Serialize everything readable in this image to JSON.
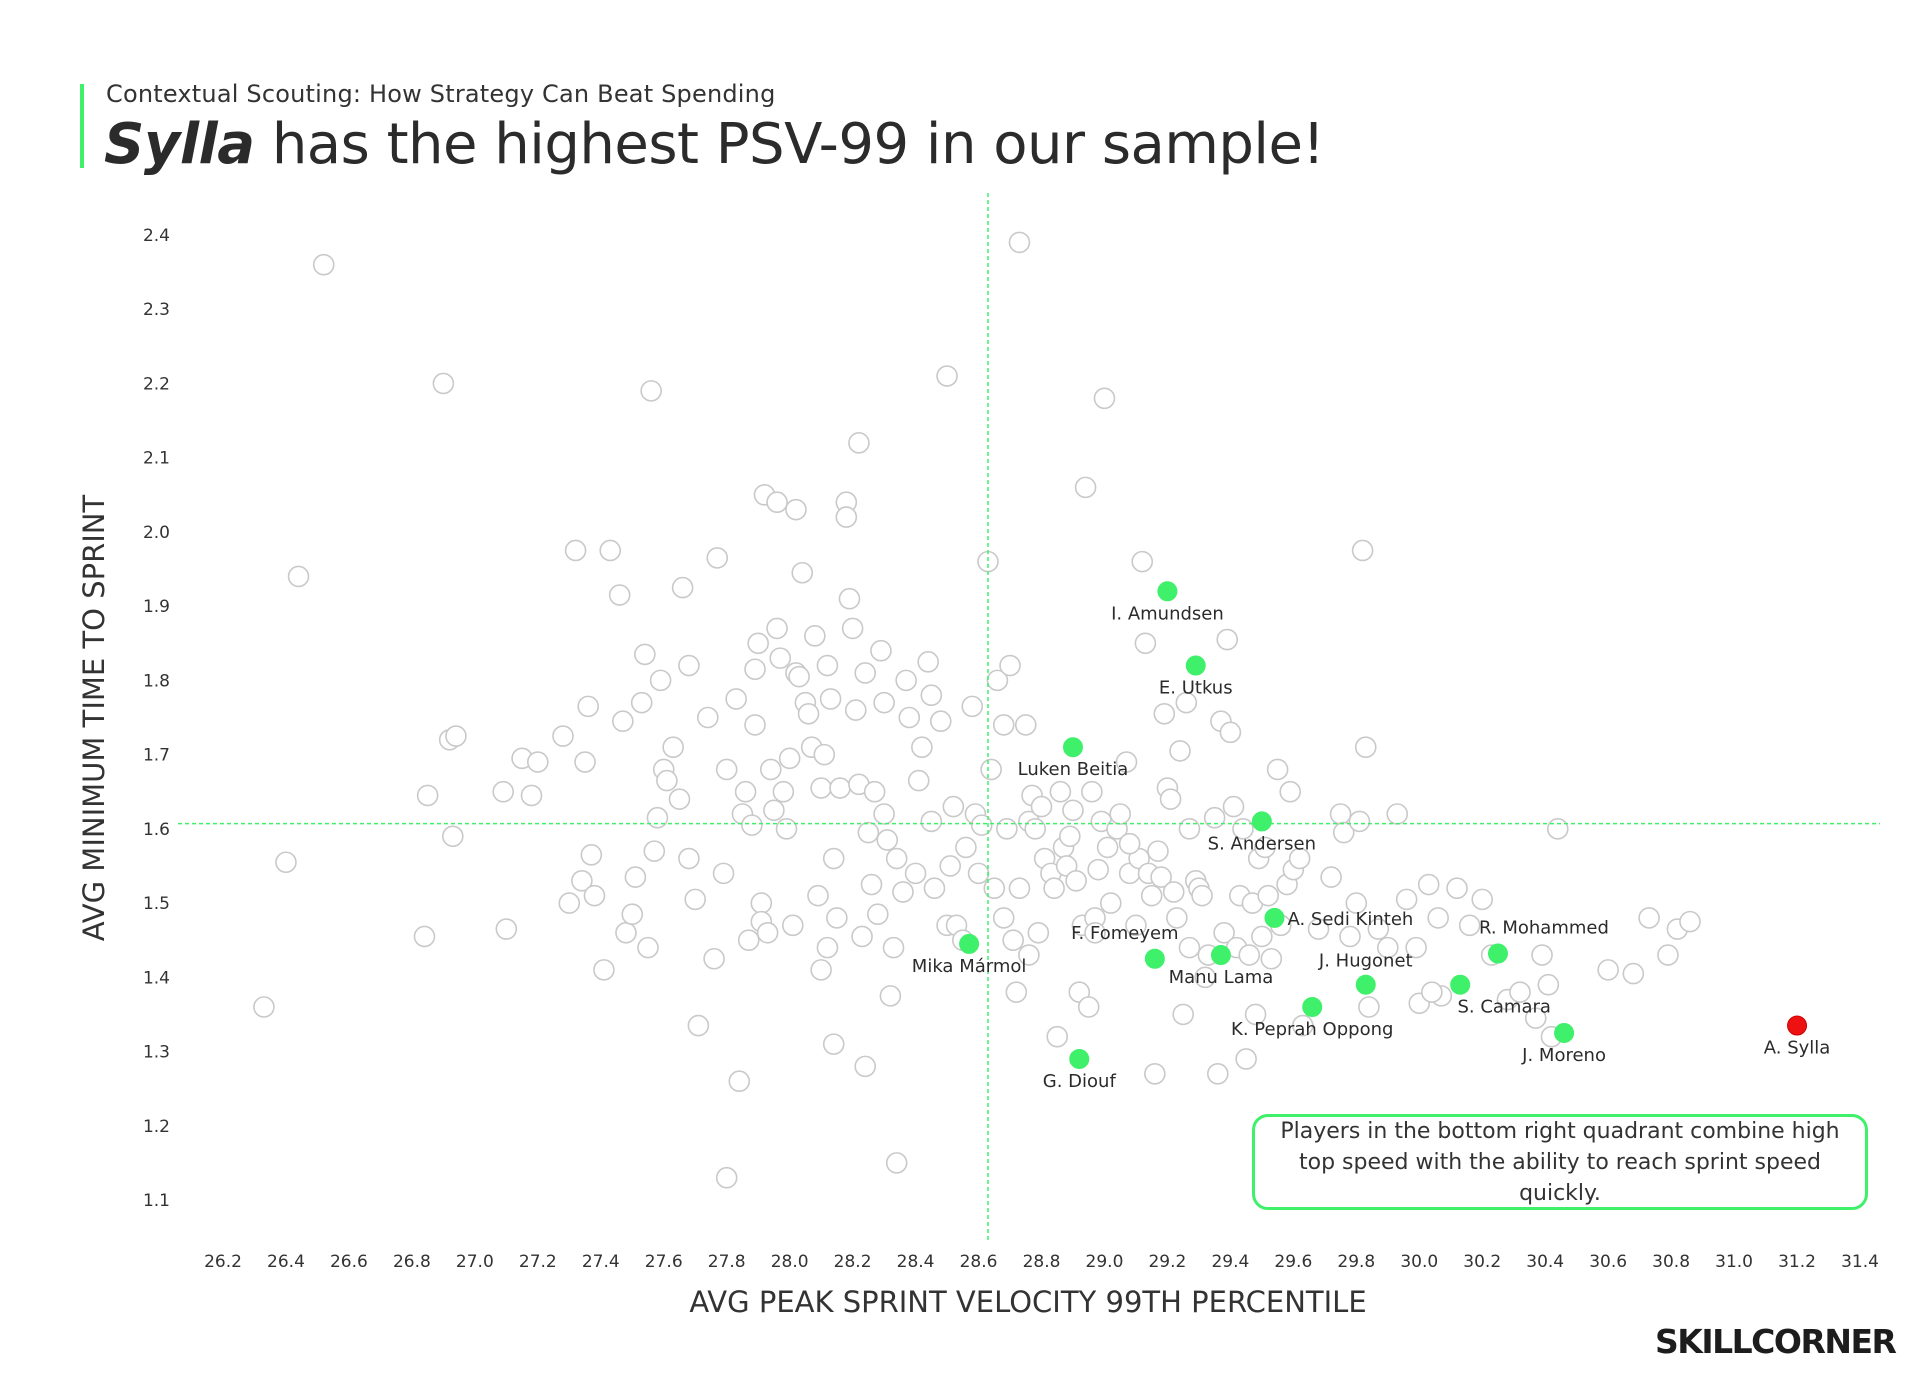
{
  "header": {
    "subtitle": "Contextual Scouting: How Strategy Can Beat Spending",
    "title_emphasis": "Sylla",
    "title_rest": " has the highest PSV-99 in our sample!"
  },
  "annotation": "Players in the bottom right quadrant combine high top speed with the ability to reach sprint speed quickly.",
  "logo": "SKILLCORNER",
  "colors": {
    "accent": "#3ff06a",
    "highlight": "#3ff06a",
    "top": "#ee1111",
    "background_point": "#ffffff",
    "background_stroke": "#c9c9c9",
    "ref_line": "#3ff06a"
  },
  "chart_data": {
    "type": "scatter",
    "xlabel": "AVG PEAK SPRINT VELOCITY 99TH PERCENTILE",
    "ylabel": "AVG MINIMUM TIME TO SPRINT",
    "xlim": [
      26.2,
      31.4
    ],
    "ylim": [
      1.1,
      2.4
    ],
    "x_ticks": [
      "26.2",
      "26.4",
      "26.6",
      "26.8",
      "27.0",
      "27.2",
      "27.4",
      "27.6",
      "27.8",
      "28.0",
      "28.2",
      "28.4",
      "28.6",
      "28.8",
      "29.0",
      "29.2",
      "29.4",
      "29.6",
      "29.8",
      "30.0",
      "30.2",
      "30.4",
      "30.6",
      "30.8",
      "31.0",
      "31.2",
      "31.4"
    ],
    "y_ticks": [
      "1.1",
      "1.2",
      "1.3",
      "1.4",
      "1.5",
      "1.6",
      "1.7",
      "1.8",
      "1.9",
      "2.0",
      "2.1",
      "2.2",
      "2.3",
      "2.4"
    ],
    "reference_lines": {
      "x": 28.63,
      "y": 1.607
    },
    "highlighted": [
      {
        "name": "I. Amundsen",
        "x": 29.2,
        "y": 1.92,
        "anchor": "below"
      },
      {
        "name": "E. Utkus",
        "x": 29.29,
        "y": 1.82,
        "anchor": "below"
      },
      {
        "name": "Luken Beitia",
        "x": 28.9,
        "y": 1.71,
        "anchor": "below"
      },
      {
        "name": "S. Andersen",
        "x": 29.5,
        "y": 1.61,
        "anchor": "below"
      },
      {
        "name": "A. Sedi Kinteh",
        "x": 29.54,
        "y": 1.48,
        "anchor": "right"
      },
      {
        "name": "F. Fomeyem",
        "x": 29.16,
        "y": 1.425,
        "anchor": "above-left"
      },
      {
        "name": "Manu Lama",
        "x": 29.37,
        "y": 1.43,
        "anchor": "below"
      },
      {
        "name": "Mika Mármol",
        "x": 28.57,
        "y": 1.445,
        "anchor": "below"
      },
      {
        "name": "R. Mohammed",
        "x": 30.25,
        "y": 1.432,
        "anchor": "above-right"
      },
      {
        "name": "J. Hugonet",
        "x": 29.83,
        "y": 1.39,
        "anchor": "above"
      },
      {
        "name": "S. Camara",
        "x": 30.13,
        "y": 1.39,
        "anchor": "below-right"
      },
      {
        "name": "K. Peprah Oppong",
        "x": 29.66,
        "y": 1.36,
        "anchor": "below"
      },
      {
        "name": "J. Moreno",
        "x": 30.46,
        "y": 1.325,
        "anchor": "below"
      },
      {
        "name": "G. Diouf",
        "x": 28.92,
        "y": 1.29,
        "anchor": "below"
      }
    ],
    "top_player": {
      "name": "A. Sylla",
      "x": 31.2,
      "y": 1.335
    },
    "background_points": [
      [
        26.52,
        2.36
      ],
      [
        26.44,
        1.94
      ],
      [
        26.33,
        1.36
      ],
      [
        26.4,
        1.555
      ],
      [
        26.85,
        1.645
      ],
      [
        26.84,
        1.455
      ],
      [
        26.9,
        2.2
      ],
      [
        26.92,
        1.72
      ],
      [
        26.94,
        1.725
      ],
      [
        26.93,
        1.59
      ],
      [
        27.09,
        1.65
      ],
      [
        27.1,
        1.465
      ],
      [
        27.15,
        1.695
      ],
      [
        27.18,
        1.645
      ],
      [
        27.2,
        1.69
      ],
      [
        27.28,
        1.725
      ],
      [
        27.3,
        1.5
      ],
      [
        27.32,
        1.975
      ],
      [
        27.34,
        1.53
      ],
      [
        27.35,
        1.69
      ],
      [
        27.37,
        1.565
      ],
      [
        27.38,
        1.51
      ],
      [
        27.36,
        1.765
      ],
      [
        27.41,
        1.41
      ],
      [
        27.43,
        1.975
      ],
      [
        27.46,
        1.915
      ],
      [
        27.47,
        1.745
      ],
      [
        27.48,
        1.46
      ],
      [
        27.5,
        1.485
      ],
      [
        27.51,
        1.535
      ],
      [
        27.53,
        1.77
      ],
      [
        27.54,
        1.835
      ],
      [
        27.55,
        1.44
      ],
      [
        27.56,
        2.19
      ],
      [
        27.57,
        1.57
      ],
      [
        27.58,
        1.615
      ],
      [
        27.59,
        1.8
      ],
      [
        27.6,
        1.68
      ],
      [
        27.61,
        1.665
      ],
      [
        27.63,
        1.71
      ],
      [
        27.65,
        1.64
      ],
      [
        27.66,
        1.925
      ],
      [
        27.68,
        1.56
      ],
      [
        27.7,
        1.505
      ],
      [
        27.71,
        1.335
      ],
      [
        27.74,
        1.75
      ],
      [
        27.76,
        1.425
      ],
      [
        27.77,
        1.965
      ],
      [
        27.79,
        1.54
      ],
      [
        27.8,
        1.68
      ],
      [
        27.83,
        1.775
      ],
      [
        27.84,
        1.26
      ],
      [
        27.85,
        1.62
      ],
      [
        27.86,
        1.65
      ],
      [
        27.87,
        1.45
      ],
      [
        27.88,
        1.605
      ],
      [
        27.89,
        1.74
      ],
      [
        27.89,
        1.815
      ],
      [
        27.9,
        1.85
      ],
      [
        27.91,
        1.5
      ],
      [
        27.91,
        1.475
      ],
      [
        27.92,
        2.05
      ],
      [
        27.93,
        1.46
      ],
      [
        27.94,
        1.68
      ],
      [
        27.95,
        1.625
      ],
      [
        27.96,
        1.87
      ],
      [
        27.96,
        2.04
      ],
      [
        27.97,
        1.83
      ],
      [
        27.98,
        1.65
      ],
      [
        27.99,
        1.6
      ],
      [
        28.0,
        1.695
      ],
      [
        28.01,
        1.47
      ],
      [
        28.02,
        1.81
      ],
      [
        28.03,
        1.805
      ],
      [
        28.04,
        1.945
      ],
      [
        28.05,
        1.77
      ],
      [
        28.06,
        1.755
      ],
      [
        28.07,
        1.71
      ],
      [
        28.08,
        1.86
      ],
      [
        28.09,
        1.51
      ],
      [
        28.1,
        1.655
      ],
      [
        28.11,
        1.7
      ],
      [
        28.12,
        1.82
      ],
      [
        28.13,
        1.775
      ],
      [
        28.14,
        1.56
      ],
      [
        28.15,
        1.48
      ],
      [
        28.16,
        1.655
      ],
      [
        28.18,
        2.04
      ],
      [
        28.19,
        1.91
      ],
      [
        28.2,
        1.87
      ],
      [
        28.21,
        1.76
      ],
      [
        28.22,
        1.66
      ],
      [
        28.23,
        1.455
      ],
      [
        28.24,
        1.81
      ],
      [
        28.25,
        1.595
      ],
      [
        28.26,
        1.525
      ],
      [
        28.27,
        1.65
      ],
      [
        28.28,
        1.485
      ],
      [
        28.29,
        1.84
      ],
      [
        28.3,
        1.77
      ],
      [
        28.31,
        1.585
      ],
      [
        28.32,
        1.375
      ],
      [
        28.33,
        1.44
      ],
      [
        28.34,
        1.56
      ],
      [
        28.36,
        1.515
      ],
      [
        28.37,
        1.8
      ],
      [
        28.38,
        1.75
      ],
      [
        28.4,
        1.54
      ],
      [
        28.41,
        1.665
      ],
      [
        28.42,
        1.71
      ],
      [
        28.44,
        1.825
      ],
      [
        28.45,
        1.78
      ],
      [
        28.46,
        1.52
      ],
      [
        28.48,
        1.745
      ],
      [
        28.5,
        1.47
      ],
      [
        28.51,
        1.55
      ],
      [
        28.52,
        1.63
      ],
      [
        28.53,
        1.47
      ],
      [
        28.55,
        1.45
      ],
      [
        28.56,
        1.575
      ],
      [
        28.58,
        1.765
      ],
      [
        28.59,
        1.62
      ],
      [
        28.61,
        1.605
      ],
      [
        28.63,
        1.96
      ],
      [
        28.64,
        1.68
      ],
      [
        28.65,
        1.52
      ],
      [
        28.66,
        1.8
      ],
      [
        28.68,
        1.74
      ],
      [
        28.69,
        1.6
      ],
      [
        28.7,
        1.82
      ],
      [
        28.71,
        1.45
      ],
      [
        28.72,
        1.38
      ],
      [
        28.73,
        1.52
      ],
      [
        28.75,
        1.74
      ],
      [
        28.76,
        1.61
      ],
      [
        28.77,
        1.645
      ],
      [
        28.78,
        1.6
      ],
      [
        28.79,
        1.46
      ],
      [
        28.8,
        1.63
      ],
      [
        28.81,
        1.56
      ],
      [
        28.83,
        1.54
      ],
      [
        28.84,
        1.52
      ],
      [
        28.85,
        1.32
      ],
      [
        28.86,
        1.65
      ],
      [
        28.87,
        1.575
      ],
      [
        28.88,
        1.55
      ],
      [
        28.89,
        1.59
      ],
      [
        28.9,
        1.625
      ],
      [
        28.91,
        1.53
      ],
      [
        28.92,
        1.38
      ],
      [
        28.93,
        1.47
      ],
      [
        28.94,
        2.06
      ],
      [
        28.95,
        1.36
      ],
      [
        28.96,
        1.65
      ],
      [
        28.97,
        1.48
      ],
      [
        28.98,
        1.545
      ],
      [
        28.99,
        1.61
      ],
      [
        29.0,
        2.18
      ],
      [
        29.01,
        1.575
      ],
      [
        29.02,
        1.5
      ],
      [
        29.04,
        1.6
      ],
      [
        29.05,
        1.62
      ],
      [
        29.07,
        1.69
      ],
      [
        29.08,
        1.54
      ],
      [
        29.1,
        1.47
      ],
      [
        29.11,
        1.56
      ],
      [
        29.12,
        1.96
      ],
      [
        29.13,
        1.85
      ],
      [
        29.14,
        1.54
      ],
      [
        29.15,
        1.51
      ],
      [
        29.16,
        1.27
      ],
      [
        29.17,
        1.57
      ],
      [
        29.18,
        1.535
      ],
      [
        29.19,
        1.755
      ],
      [
        29.2,
        1.655
      ],
      [
        29.21,
        1.64
      ],
      [
        29.22,
        1.515
      ],
      [
        29.23,
        1.48
      ],
      [
        29.24,
        1.705
      ],
      [
        29.25,
        1.35
      ],
      [
        29.26,
        1.77
      ],
      [
        29.27,
        1.44
      ],
      [
        29.29,
        1.53
      ],
      [
        29.3,
        1.52
      ],
      [
        29.31,
        1.51
      ],
      [
        29.32,
        1.4
      ],
      [
        29.33,
        1.43
      ],
      [
        29.35,
        1.615
      ],
      [
        29.36,
        1.27
      ],
      [
        29.37,
        1.745
      ],
      [
        29.38,
        1.46
      ],
      [
        29.39,
        1.855
      ],
      [
        29.4,
        1.73
      ],
      [
        29.41,
        1.63
      ],
      [
        29.42,
        1.44
      ],
      [
        29.43,
        1.51
      ],
      [
        29.44,
        1.6
      ],
      [
        29.45,
        1.29
      ],
      [
        29.46,
        1.43
      ],
      [
        29.47,
        1.5
      ],
      [
        29.48,
        1.35
      ],
      [
        29.49,
        1.56
      ],
      [
        29.5,
        1.455
      ],
      [
        29.51,
        1.575
      ],
      [
        29.52,
        1.51
      ],
      [
        29.53,
        1.425
      ],
      [
        29.55,
        1.68
      ],
      [
        29.56,
        1.47
      ],
      [
        29.58,
        1.525
      ],
      [
        29.59,
        1.65
      ],
      [
        29.6,
        1.545
      ],
      [
        29.62,
        1.56
      ],
      [
        29.63,
        1.335
      ],
      [
        29.68,
        1.465
      ],
      [
        29.72,
        1.535
      ],
      [
        29.75,
        1.62
      ],
      [
        29.76,
        1.595
      ],
      [
        29.78,
        1.455
      ],
      [
        29.8,
        1.5
      ],
      [
        29.81,
        1.61
      ],
      [
        29.82,
        1.975
      ],
      [
        29.83,
        1.71
      ],
      [
        29.84,
        1.36
      ],
      [
        29.87,
        1.465
      ],
      [
        29.9,
        1.44
      ],
      [
        29.93,
        1.62
      ],
      [
        29.96,
        1.505
      ],
      [
        29.99,
        1.44
      ],
      [
        30.0,
        1.365
      ],
      [
        30.03,
        1.525
      ],
      [
        30.06,
        1.48
      ],
      [
        30.07,
        1.375
      ],
      [
        30.12,
        1.52
      ],
      [
        30.16,
        1.47
      ],
      [
        30.2,
        1.505
      ],
      [
        30.23,
        1.43
      ],
      [
        30.28,
        1.37
      ],
      [
        30.32,
        1.38
      ],
      [
        30.37,
        1.345
      ],
      [
        30.39,
        1.43
      ],
      [
        30.41,
        1.39
      ],
      [
        30.42,
        1.32
      ],
      [
        30.44,
        1.6
      ],
      [
        30.6,
        1.41
      ],
      [
        30.68,
        1.405
      ],
      [
        30.73,
        1.48
      ],
      [
        30.79,
        1.43
      ],
      [
        30.82,
        1.465
      ],
      [
        30.86,
        1.475
      ],
      [
        30.04,
        1.38
      ],
      [
        28.73,
        2.39
      ],
      [
        28.5,
        2.21
      ],
      [
        28.22,
        2.12
      ],
      [
        28.18,
        2.02
      ],
      [
        28.02,
        2.03
      ],
      [
        27.68,
        1.82
      ],
      [
        28.12,
        1.44
      ],
      [
        28.1,
        1.41
      ],
      [
        28.14,
        1.31
      ],
      [
        28.24,
        1.28
      ],
      [
        28.3,
        1.62
      ],
      [
        28.34,
        1.15
      ],
      [
        27.8,
        1.13
      ],
      [
        28.45,
        1.61
      ],
      [
        28.6,
        1.54
      ],
      [
        28.68,
        1.48
      ],
      [
        28.76,
        1.43
      ],
      [
        28.97,
        1.46
      ],
      [
        29.08,
        1.58
      ],
      [
        29.27,
        1.6
      ]
    ]
  }
}
